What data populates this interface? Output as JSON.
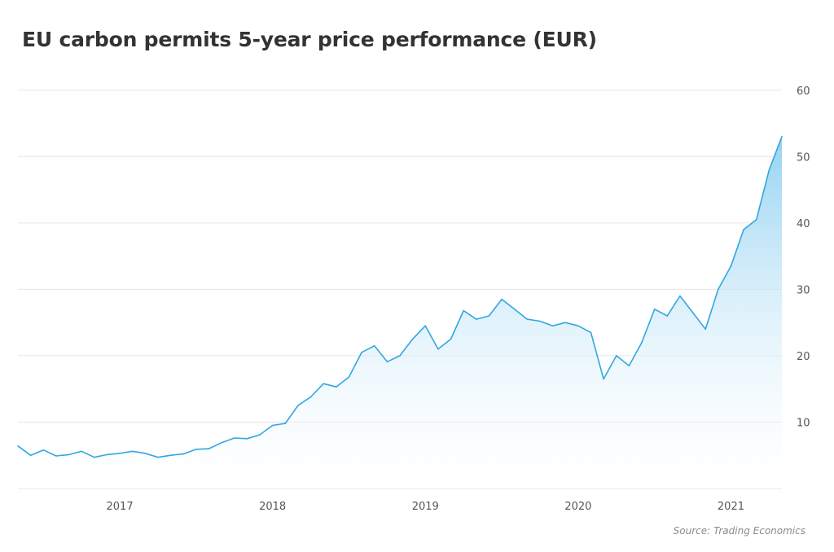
{
  "chart_data": {
    "type": "area",
    "title": "EU carbon permits 5-year price performance (EUR)",
    "xlabel": "",
    "ylabel": "",
    "x_ticks": [
      "2017",
      "2018",
      "2019",
      "2020",
      "2021"
    ],
    "y_ticks": [
      10,
      20,
      30,
      40,
      50,
      60
    ],
    "xlim": [
      "2016-05",
      "2021-05"
    ],
    "ylim": [
      0,
      65
    ],
    "grid": "horizontal",
    "legend": "none",
    "line_color": "#31a7e0",
    "fill_color": "#bfe3f6",
    "series": [
      {
        "x": [
          "2016-05",
          "2016-06",
          "2016-07",
          "2016-08",
          "2016-09",
          "2016-10",
          "2016-11",
          "2016-12",
          "2017-01",
          "2017-02",
          "2017-03",
          "2017-04",
          "2017-05",
          "2017-06",
          "2017-07",
          "2017-08",
          "2017-09",
          "2017-10",
          "2017-11",
          "2017-12",
          "2018-01",
          "2018-02",
          "2018-03",
          "2018-04",
          "2018-05",
          "2018-06",
          "2018-07",
          "2018-08",
          "2018-09",
          "2018-10",
          "2018-11",
          "2018-12",
          "2019-01",
          "2019-02",
          "2019-03",
          "2019-04",
          "2019-05",
          "2019-06",
          "2019-07",
          "2019-08",
          "2019-09",
          "2019-10",
          "2019-11",
          "2019-12",
          "2020-01",
          "2020-02",
          "2020-03",
          "2020-04",
          "2020-05",
          "2020-06",
          "2020-07",
          "2020-08",
          "2020-09",
          "2020-10",
          "2020-11",
          "2020-12",
          "2021-01",
          "2021-02",
          "2021-03",
          "2021-04",
          "2021-05"
        ],
        "values": [
          6.4,
          5.0,
          5.8,
          4.9,
          5.1,
          5.6,
          4.7,
          5.1,
          5.3,
          5.6,
          5.3,
          4.7,
          5.0,
          5.2,
          5.9,
          6.0,
          6.9,
          7.6,
          7.5,
          8.1,
          9.5,
          9.8,
          12.5,
          13.8,
          15.8,
          15.3,
          16.8,
          20.5,
          21.5,
          19.1,
          20.0,
          22.5,
          24.5,
          21.0,
          22.5,
          26.8,
          25.5,
          26.0,
          28.5,
          27.0,
          25.5,
          25.2,
          24.5,
          25.0,
          24.5,
          23.5,
          16.5,
          20.0,
          18.5,
          22.0,
          27.0,
          26.0,
          29.0,
          26.5,
          24.0,
          30.0,
          33.5,
          39.0,
          40.5,
          48.0,
          53.0
        ]
      }
    ]
  },
  "source": "Source: Trading Economics"
}
